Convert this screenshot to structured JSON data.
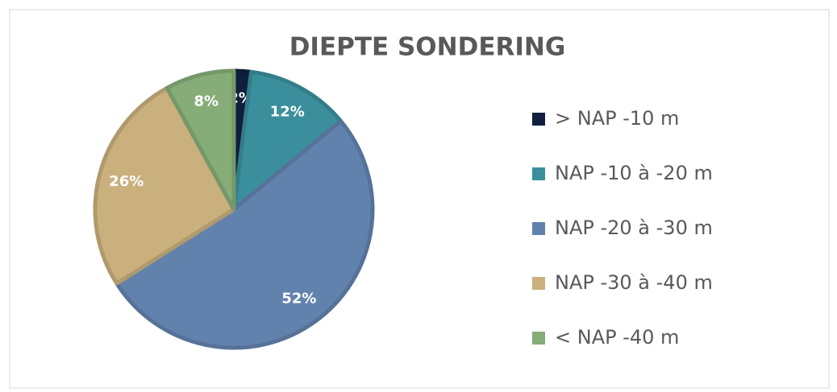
{
  "chart_data": {
    "type": "pie",
    "title": "DIEPTE SONDERING",
    "categories": [
      "> NAP -10 m",
      "NAP -10 à -20 m",
      "NAP -20 à -30 m",
      "NAP -30 à -40 m",
      "< NAP -40 m"
    ],
    "values": [
      2,
      12,
      52,
      26,
      8
    ],
    "value_labels": [
      "2%",
      "12%",
      "52%",
      "26%",
      "8%"
    ],
    "colors": [
      "#0f1f3d",
      "#3b8f9c",
      "#6282ae",
      "#c9b07d",
      "#86ad78"
    ],
    "legend": "right"
  }
}
